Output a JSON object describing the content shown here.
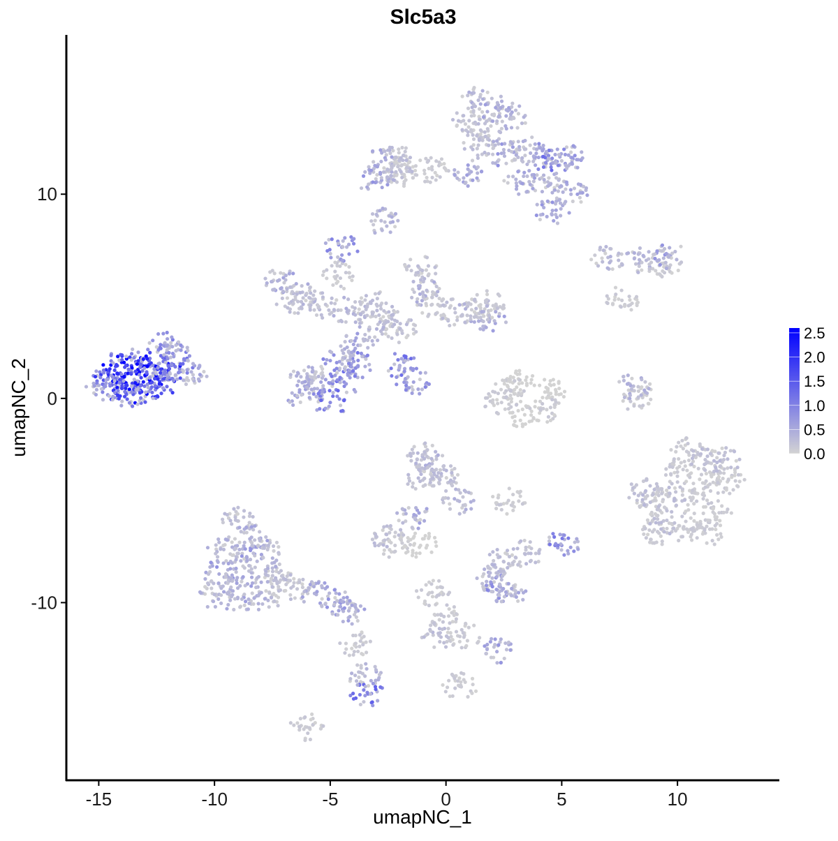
{
  "chart_data": {
    "type": "scatter",
    "title": "Slc5a3",
    "xlabel": "umapNC_1",
    "ylabel": "umapNC_2",
    "xlim": [
      -16.4,
      14.4
    ],
    "ylim": [
      -18.7,
      17.8
    ],
    "xticks": [
      -15,
      -10,
      -5,
      0,
      5,
      10
    ],
    "xtick_labels": [
      "-15",
      "-10",
      "-5",
      "0",
      "5",
      "10"
    ],
    "yticks": [
      -10,
      0,
      10
    ],
    "ytick_labels": [
      "-10",
      "0",
      "10"
    ],
    "grid": false,
    "legend": {
      "placement": "right",
      "type": "colorbar",
      "range": [
        0,
        2.6
      ],
      "ticks": [
        0,
        0.5,
        1,
        1.5,
        2,
        2.5
      ],
      "tick_labels": [
        "0.0",
        "0.5",
        "1.0",
        "1.5",
        "2.0",
        "2.5"
      ],
      "low_color": "#d3d3d3",
      "high_color": "#0000ff"
    },
    "point_fields": [
      "umapNC_1",
      "umapNC_2",
      "expression"
    ],
    "points": [
      [
        -14.6,
        1.0,
        1.4
      ],
      [
        -14.2,
        1.6,
        1.8
      ],
      [
        -14.0,
        0.6,
        1.6
      ],
      [
        -13.6,
        1.2,
        2.2
      ],
      [
        -13.4,
        1.8,
        1.5
      ],
      [
        -13.2,
        0.4,
        1.9
      ],
      [
        -12.8,
        1.0,
        1.7
      ],
      [
        -12.6,
        1.6,
        1.6
      ],
      [
        -12.4,
        0.6,
        1.3
      ],
      [
        -12.0,
        1.2,
        1.5
      ],
      [
        -11.8,
        2.2,
        0.8
      ],
      [
        -11.5,
        1.3,
        1.0
      ],
      [
        -11.0,
        1.3,
        0.4
      ],
      [
        -13.8,
        0.2,
        1.2
      ],
      [
        -12.2,
        2.6,
        0.7
      ],
      [
        -14.8,
        0.5,
        0.6
      ],
      [
        -3.3,
        3.4,
        0.3
      ],
      [
        -3.8,
        2.6,
        0.5
      ],
      [
        -2.6,
        3.8,
        0.2
      ],
      [
        -2.0,
        3.4,
        0.2
      ],
      [
        -4.2,
        4.3,
        0.3
      ],
      [
        -5.2,
        4.6,
        0.2
      ],
      [
        -6.2,
        5.2,
        0.3
      ],
      [
        -7.2,
        5.8,
        0.4
      ],
      [
        -6.6,
        4.8,
        0.2
      ],
      [
        -4.5,
        7.4,
        0.6
      ],
      [
        -1.1,
        6.3,
        0.2
      ],
      [
        -1.0,
        5.2,
        0.3
      ],
      [
        -0.6,
        4.6,
        0.1
      ],
      [
        0.4,
        4.2,
        0.2
      ],
      [
        1.3,
        4.4,
        0.3
      ],
      [
        1.9,
        3.9,
        0.4
      ],
      [
        1.8,
        4.6,
        0.1
      ],
      [
        -3.8,
        1.6,
        0.7
      ],
      [
        -4.4,
        0.8,
        0.8
      ],
      [
        -5.4,
        0.8,
        0.6
      ],
      [
        -6.0,
        1.2,
        0.3
      ],
      [
        -6.2,
        0.2,
        0.4
      ],
      [
        -5.0,
        -0.2,
        0.9
      ],
      [
        -4.6,
        1.8,
        0.6
      ],
      [
        -2.0,
        1.6,
        0.8
      ],
      [
        -1.4,
        0.8,
        0.6
      ],
      [
        -4.7,
        6.0,
        0.1
      ],
      [
        -3.0,
        4.6,
        0.2
      ],
      [
        1.4,
        14.6,
        0.3
      ],
      [
        1.0,
        13.6,
        0.2
      ],
      [
        2.2,
        14.2,
        0.4
      ],
      [
        1.8,
        13.2,
        0.2
      ],
      [
        2.8,
        13.8,
        0.3
      ],
      [
        1.4,
        12.4,
        0.2
      ],
      [
        2.4,
        12.0,
        0.5
      ],
      [
        3.4,
        12.2,
        0.3
      ],
      [
        4.0,
        11.8,
        0.6
      ],
      [
        4.8,
        11.6,
        0.8
      ],
      [
        5.4,
        11.8,
        0.5
      ],
      [
        4.4,
        10.6,
        0.3
      ],
      [
        5.4,
        10.0,
        0.4
      ],
      [
        4.6,
        9.2,
        0.5
      ],
      [
        3.2,
        10.6,
        0.4
      ],
      [
        1.0,
        11.0,
        0.4
      ],
      [
        -0.6,
        11.2,
        0.1
      ],
      [
        -2.0,
        11.2,
        0.2
      ],
      [
        -2.8,
        11.6,
        0.4
      ],
      [
        -2.2,
        11.8,
        0.2
      ],
      [
        -2.8,
        8.7,
        0.3
      ],
      [
        -3.0,
        10.6,
        0.5
      ],
      [
        -1.9,
        11.0,
        0.1
      ],
      [
        3.2,
        0.9,
        0.0
      ],
      [
        2.4,
        -0.2,
        0.1
      ],
      [
        3.4,
        -0.8,
        0.0
      ],
      [
        4.2,
        -0.5,
        0.1
      ],
      [
        4.4,
        0.3,
        0.0
      ],
      [
        2.8,
        0.4,
        0.1
      ],
      [
        8.1,
        0.6,
        0.3
      ],
      [
        8.3,
        0.0,
        0.1
      ],
      [
        10.4,
        -2.6,
        0.1
      ],
      [
        11.2,
        -3.0,
        0.2
      ],
      [
        10.0,
        -3.6,
        0.1
      ],
      [
        11.4,
        -4.2,
        0.1
      ],
      [
        9.6,
        -4.8,
        0.2
      ],
      [
        10.6,
        -5.0,
        0.1
      ],
      [
        11.8,
        -5.6,
        0.1
      ],
      [
        9.4,
        -6.0,
        0.2
      ],
      [
        10.4,
        -6.4,
        0.1
      ],
      [
        11.2,
        -6.6,
        0.1
      ],
      [
        12.2,
        -4.0,
        0.1
      ],
      [
        9.0,
        -5.0,
        0.1
      ],
      [
        9.2,
        -6.6,
        0.1
      ],
      [
        8.6,
        -4.6,
        0.2
      ],
      [
        12.0,
        -3.0,
        0.2
      ],
      [
        -9.0,
        -6.0,
        0.2
      ],
      [
        -8.4,
        -6.8,
        0.4
      ],
      [
        -9.6,
        -7.4,
        0.3
      ],
      [
        -8.6,
        -7.8,
        0.5
      ],
      [
        -7.8,
        -7.2,
        0.2
      ],
      [
        -9.8,
        -8.6,
        0.5
      ],
      [
        -8.8,
        -8.8,
        0.4
      ],
      [
        -7.8,
        -8.4,
        0.3
      ],
      [
        -10.0,
        -9.6,
        0.3
      ],
      [
        -9.0,
        -9.8,
        0.4
      ],
      [
        -7.8,
        -9.8,
        0.3
      ],
      [
        -7.2,
        -9.0,
        0.2
      ],
      [
        -6.6,
        -9.2,
        0.2
      ],
      [
        -5.6,
        -9.6,
        0.4
      ],
      [
        -4.8,
        -10.0,
        0.5
      ],
      [
        -4.2,
        -10.4,
        0.4
      ],
      [
        -3.4,
        -14.4,
        0.9
      ],
      [
        -3.5,
        -13.6,
        0.3
      ],
      [
        -3.9,
        -12.0,
        0.1
      ],
      [
        -6.0,
        -16.1,
        0.1
      ],
      [
        -0.6,
        -3.2,
        0.3
      ],
      [
        -0.2,
        -3.8,
        0.2
      ],
      [
        -1.0,
        -4.0,
        0.2
      ],
      [
        0.5,
        -5.0,
        0.3
      ],
      [
        -1.4,
        -5.8,
        0.4
      ],
      [
        -1.0,
        -2.8,
        0.2
      ],
      [
        -2.5,
        -6.9,
        0.2
      ],
      [
        -2.2,
        -7.2,
        0.1
      ],
      [
        -1.1,
        -7.2,
        0.0
      ],
      [
        2.3,
        -9.2,
        0.6
      ],
      [
        2.0,
        -8.8,
        0.3
      ],
      [
        2.8,
        -9.6,
        0.4
      ],
      [
        2.5,
        -8.0,
        0.2
      ],
      [
        -0.2,
        -10.6,
        0.1
      ],
      [
        -0.3,
        -11.6,
        0.2
      ],
      [
        0.8,
        -11.6,
        0.1
      ],
      [
        2.2,
        -12.4,
        0.5
      ],
      [
        0.6,
        -14.1,
        0.1
      ],
      [
        -0.6,
        -9.5,
        0.1
      ],
      [
        5.0,
        -7.2,
        0.7
      ],
      [
        3.4,
        -7.6,
        0.2
      ],
      [
        2.7,
        -5.0,
        0.1
      ],
      [
        9.7,
        7.0,
        0.5
      ],
      [
        7.0,
        6.9,
        0.3
      ],
      [
        7.6,
        4.8,
        0.1
      ],
      [
        8.4,
        6.7,
        0.3
      ],
      [
        9.4,
        6.6,
        0.1
      ]
    ]
  }
}
